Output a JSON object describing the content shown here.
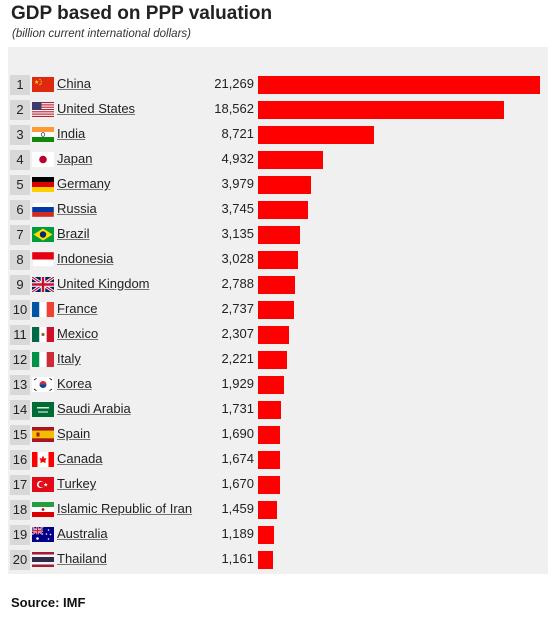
{
  "chart_data": {
    "type": "bar",
    "orientation": "horizontal",
    "title": "GDP based on PPP valuation",
    "subtitle": "(billion current international dollars)",
    "source": "Source: IMF",
    "bar_color": "#ff0000",
    "xlim": [
      0,
      21269
    ],
    "rows": [
      {
        "rank": "1",
        "country": "China",
        "value": 21269,
        "value_label": "21,269",
        "flag": "china-flag-icon"
      },
      {
        "rank": "2",
        "country": "United States",
        "value": 18562,
        "value_label": "18,562",
        "flag": "usa-flag-icon"
      },
      {
        "rank": "3",
        "country": "India",
        "value": 8721,
        "value_label": "8,721",
        "flag": "india-flag-icon"
      },
      {
        "rank": "4",
        "country": "Japan",
        "value": 4932,
        "value_label": "4,932",
        "flag": "japan-flag-icon"
      },
      {
        "rank": "5",
        "country": "Germany",
        "value": 3979,
        "value_label": "3,979",
        "flag": "germany-flag-icon"
      },
      {
        "rank": "6",
        "country": "Russia",
        "value": 3745,
        "value_label": "3,745",
        "flag": "russia-flag-icon"
      },
      {
        "rank": "7",
        "country": "Brazil",
        "value": 3135,
        "value_label": "3,135",
        "flag": "brazil-flag-icon"
      },
      {
        "rank": "8",
        "country": "Indonesia",
        "value": 3028,
        "value_label": "3,028",
        "flag": "indonesia-flag-icon"
      },
      {
        "rank": "9",
        "country": "United Kingdom",
        "value": 2788,
        "value_label": "2,788",
        "flag": "uk-flag-icon"
      },
      {
        "rank": "10",
        "country": "France",
        "value": 2737,
        "value_label": "2,737",
        "flag": "france-flag-icon"
      },
      {
        "rank": "11",
        "country": "Mexico",
        "value": 2307,
        "value_label": "2,307",
        "flag": "mexico-flag-icon"
      },
      {
        "rank": "12",
        "country": "Italy",
        "value": 2221,
        "value_label": "2,221",
        "flag": "italy-flag-icon"
      },
      {
        "rank": "13",
        "country": "Korea",
        "value": 1929,
        "value_label": "1,929",
        "flag": "korea-flag-icon"
      },
      {
        "rank": "14",
        "country": "Saudi Arabia",
        "value": 1731,
        "value_label": "1,731",
        "flag": "saudi-arabia-flag-icon"
      },
      {
        "rank": "15",
        "country": "Spain",
        "value": 1690,
        "value_label": "1,690",
        "flag": "spain-flag-icon"
      },
      {
        "rank": "16",
        "country": "Canada",
        "value": 1674,
        "value_label": "1,674",
        "flag": "canada-flag-icon"
      },
      {
        "rank": "17",
        "country": "Turkey",
        "value": 1670,
        "value_label": "1,670",
        "flag": "turkey-flag-icon"
      },
      {
        "rank": "18",
        "country": "Islamic Republic of Iran",
        "value": 1459,
        "value_label": "1,459",
        "flag": "iran-flag-icon"
      },
      {
        "rank": "19",
        "country": "Australia",
        "value": 1189,
        "value_label": "1,189",
        "flag": "australia-flag-icon"
      },
      {
        "rank": "20",
        "country": "Thailand",
        "value": 1161,
        "value_label": "1,161",
        "flag": "thailand-flag-icon"
      }
    ]
  }
}
